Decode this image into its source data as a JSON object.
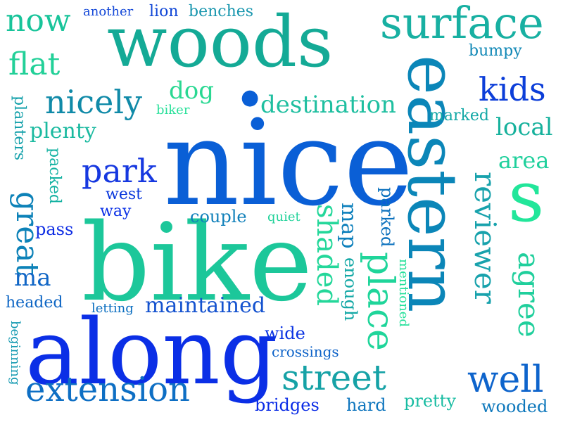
{
  "background": "#ffffff",
  "words": [
    {
      "text": "nice",
      "color": "#0a5fd6"
    },
    {
      "text": "bike",
      "color": "#1cc79a"
    },
    {
      "text": "along",
      "color": "#0b2fe6"
    },
    {
      "text": "woods",
      "color": "#14aa96"
    },
    {
      "text": "eastern",
      "color": "#0b86b8"
    },
    {
      "text": "surface",
      "color": "#18b0a2"
    },
    {
      "text": "extension",
      "color": "#0e6fc4"
    },
    {
      "text": "s",
      "color": "#22e69a"
    },
    {
      "text": "street",
      "color": "#16a2a6"
    },
    {
      "text": "place",
      "color": "#1fd59a"
    },
    {
      "text": "reviewer",
      "color": "#18a2ac"
    },
    {
      "text": "shaded",
      "color": "#24d79a"
    },
    {
      "text": "well",
      "color": "#0e64cc"
    },
    {
      "text": "agree",
      "color": "#20cf9c"
    },
    {
      "text": "great",
      "color": "#0d82b8"
    },
    {
      "text": "park",
      "color": "#1638e0"
    },
    {
      "text": "maintained",
      "color": "#1452cf"
    },
    {
      "text": "nicely",
      "color": "#108aa8"
    },
    {
      "text": "destination",
      "color": "#1fbfa0"
    },
    {
      "text": "now",
      "color": "#18c49a"
    },
    {
      "text": "flat",
      "color": "#22d098"
    },
    {
      "text": "kids",
      "color": "#0c3ed9"
    },
    {
      "text": "plenty",
      "color": "#1bbaa0"
    },
    {
      "text": "local",
      "color": "#16b19c"
    },
    {
      "text": "area",
      "color": "#1fd09c"
    },
    {
      "text": "dog",
      "color": "#2ad892"
    },
    {
      "text": "pass",
      "color": "#0e2de4"
    },
    {
      "text": "ma",
      "color": "#1166c6"
    },
    {
      "text": "map",
      "color": "#0e80bc"
    },
    {
      "text": "enough",
      "color": "#14a8a6"
    },
    {
      "text": "parked",
      "color": "#0d72be"
    },
    {
      "text": "mentioned",
      "color": "#24e09a"
    },
    {
      "text": "planters",
      "color": "#13a0aa"
    },
    {
      "text": "packed",
      "color": "#14b2a2"
    },
    {
      "text": "beginning",
      "color": "#1198b0"
    },
    {
      "text": "couple",
      "color": "#1080ba"
    },
    {
      "text": "quiet",
      "color": "#22d29a"
    },
    {
      "text": "west",
      "color": "#0a38dc"
    },
    {
      "text": "way",
      "color": "#0a30e6"
    },
    {
      "text": "headed",
      "color": "#0e66c4"
    },
    {
      "text": "letting",
      "color": "#0b6ec0"
    },
    {
      "text": "wide",
      "color": "#0a33e2"
    },
    {
      "text": "crossings",
      "color": "#0c62c8"
    },
    {
      "text": "bridges",
      "color": "#0b2ce6"
    },
    {
      "text": "hard",
      "color": "#0f76be"
    },
    {
      "text": "pretty",
      "color": "#18bca2"
    },
    {
      "text": "wooded",
      "color": "#0e78bc"
    },
    {
      "text": "marked",
      "color": "#12a8a6"
    },
    {
      "text": "bumpy",
      "color": "#1188b6"
    },
    {
      "text": "biker",
      "color": "#28e09a"
    },
    {
      "text": "another",
      "color": "#1448d8"
    },
    {
      "text": "lion",
      "color": "#1046d6"
    },
    {
      "text": "benches",
      "color": "#1896ae"
    }
  ]
}
